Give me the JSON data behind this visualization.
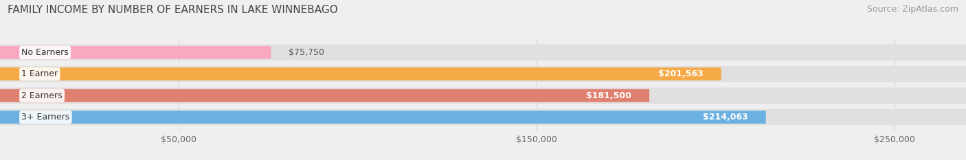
{
  "title": "FAMILY INCOME BY NUMBER OF EARNERS IN LAKE WINNEBAGO",
  "source": "Source: ZipAtlas.com",
  "categories": [
    "No Earners",
    "1 Earner",
    "2 Earners",
    "3+ Earners"
  ],
  "values": [
    75750,
    201563,
    181500,
    214063
  ],
  "bar_colors": [
    "#f9a8c0",
    "#f5a947",
    "#e08070",
    "#6ab0e0"
  ],
  "value_labels": [
    "$75,750",
    "$201,563",
    "$181,500",
    "$214,063"
  ],
  "x_ticks": [
    50000,
    150000,
    250000
  ],
  "x_tick_labels": [
    "$50,000",
    "$150,000",
    "$250,000"
  ],
  "xlim": [
    0,
    270000
  ],
  "background_color": "#efefef",
  "bar_bg_color": "#e0e0e0",
  "title_fontsize": 11,
  "source_fontsize": 9,
  "label_fontsize": 9,
  "value_fontsize": 9
}
